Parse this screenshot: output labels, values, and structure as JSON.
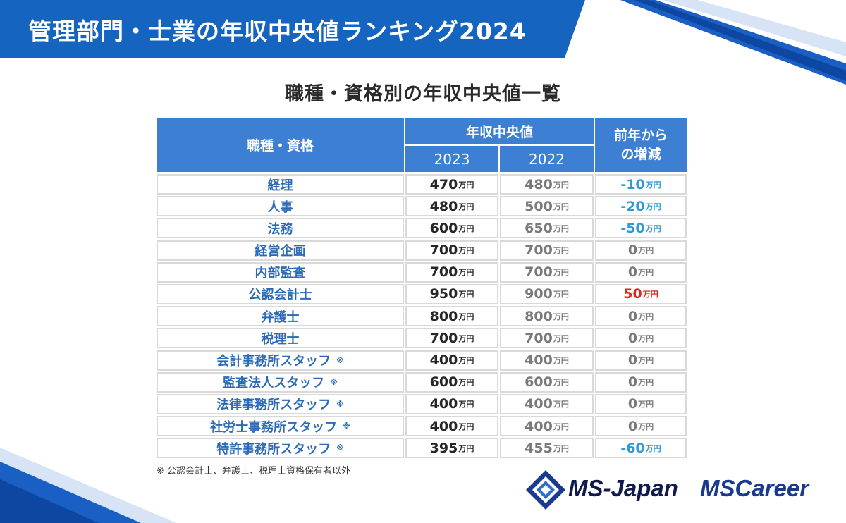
{
  "banner": {
    "title": "管理部門・士業の年収中央値ランキング2024"
  },
  "subtitle": "職種・資格別の年収中央値一覧",
  "table": {
    "header_job": "職種・資格",
    "header_median": "年収中央値",
    "year_2023": "2023",
    "year_2022": "2022",
    "header_change": "前年から\nの増減",
    "unit": "万円",
    "note_mark": "※",
    "rows": [
      {
        "name": "経理",
        "note": "",
        "v2023": "470",
        "v2022": "480",
        "diff": "-10",
        "sign": "neg"
      },
      {
        "name": "人事",
        "note": "",
        "v2023": "480",
        "v2022": "500",
        "diff": "-20",
        "sign": "neg"
      },
      {
        "name": "法務",
        "note": "",
        "v2023": "600",
        "v2022": "650",
        "diff": "-50",
        "sign": "neg"
      },
      {
        "name": "経営企画",
        "note": "",
        "v2023": "700",
        "v2022": "700",
        "diff": "0",
        "sign": "zero"
      },
      {
        "name": "内部監査",
        "note": "",
        "v2023": "700",
        "v2022": "700",
        "diff": "0",
        "sign": "zero"
      },
      {
        "name": "公認会計士",
        "note": "",
        "v2023": "950",
        "v2022": "900",
        "diff": "50",
        "sign": "pos"
      },
      {
        "name": "弁護士",
        "note": "",
        "v2023": "800",
        "v2022": "800",
        "diff": "0",
        "sign": "zero"
      },
      {
        "name": "税理士",
        "note": "",
        "v2023": "700",
        "v2022": "700",
        "diff": "0",
        "sign": "zero"
      },
      {
        "name": "会計事務所スタッフ",
        "note": "※",
        "v2023": "400",
        "v2022": "400",
        "diff": "0",
        "sign": "zero"
      },
      {
        "name": "監査法人スタッフ",
        "note": "※",
        "v2023": "600",
        "v2022": "600",
        "diff": "0",
        "sign": "zero"
      },
      {
        "name": "法律事務所スタッフ",
        "note": "※",
        "v2023": "400",
        "v2022": "400",
        "diff": "0",
        "sign": "zero"
      },
      {
        "name": "社労士事務所スタッフ",
        "note": "※",
        "v2023": "400",
        "v2022": "400",
        "diff": "0",
        "sign": "zero"
      },
      {
        "name": "特許事務所スタッフ",
        "note": "※",
        "v2023": "395",
        "v2022": "455",
        "diff": "-60",
        "sign": "neg"
      }
    ]
  },
  "footnote": "※ 公認会計士、弁護士、税理士資格保有者以外",
  "logos": {
    "ms_japan": "MS-Japan",
    "ms_career": "MSCareer"
  },
  "colors": {
    "banner": "#1565c0",
    "header_cell": "#3d7fd3",
    "negative": "#2f9ad8",
    "positive": "#e5231c",
    "job_text": "#2b6bb6"
  }
}
